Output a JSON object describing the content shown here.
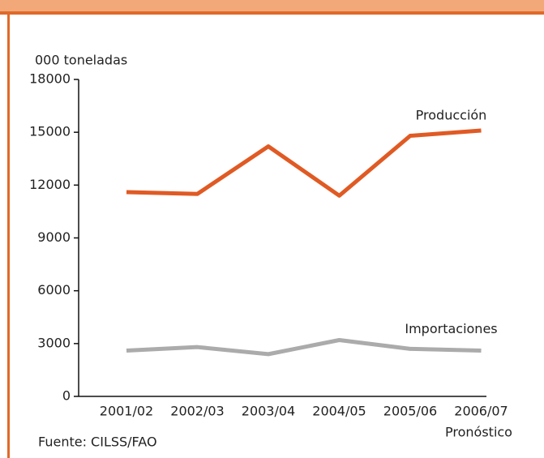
{
  "chart_data": {
    "type": "line",
    "ylabel": "000 toneladas",
    "categories": [
      "2001/02",
      "2002/03",
      "2003/04",
      "2004/05",
      "2005/06",
      "2006/07"
    ],
    "annotation": "Pronóstico",
    "source": "Fuente: CILSS/FAO",
    "series": [
      {
        "name": "Producción",
        "color": "#e05a24",
        "values": [
          11600,
          11500,
          14200,
          11400,
          14800,
          15100
        ]
      },
      {
        "name": "Importaciones",
        "color": "#ababab",
        "values": [
          2600,
          2800,
          2400,
          3200,
          2700,
          2600
        ]
      }
    ],
    "ylim": [
      0,
      18000
    ],
    "yticks": [
      0,
      3000,
      6000,
      9000,
      12000,
      15000,
      18000
    ]
  }
}
